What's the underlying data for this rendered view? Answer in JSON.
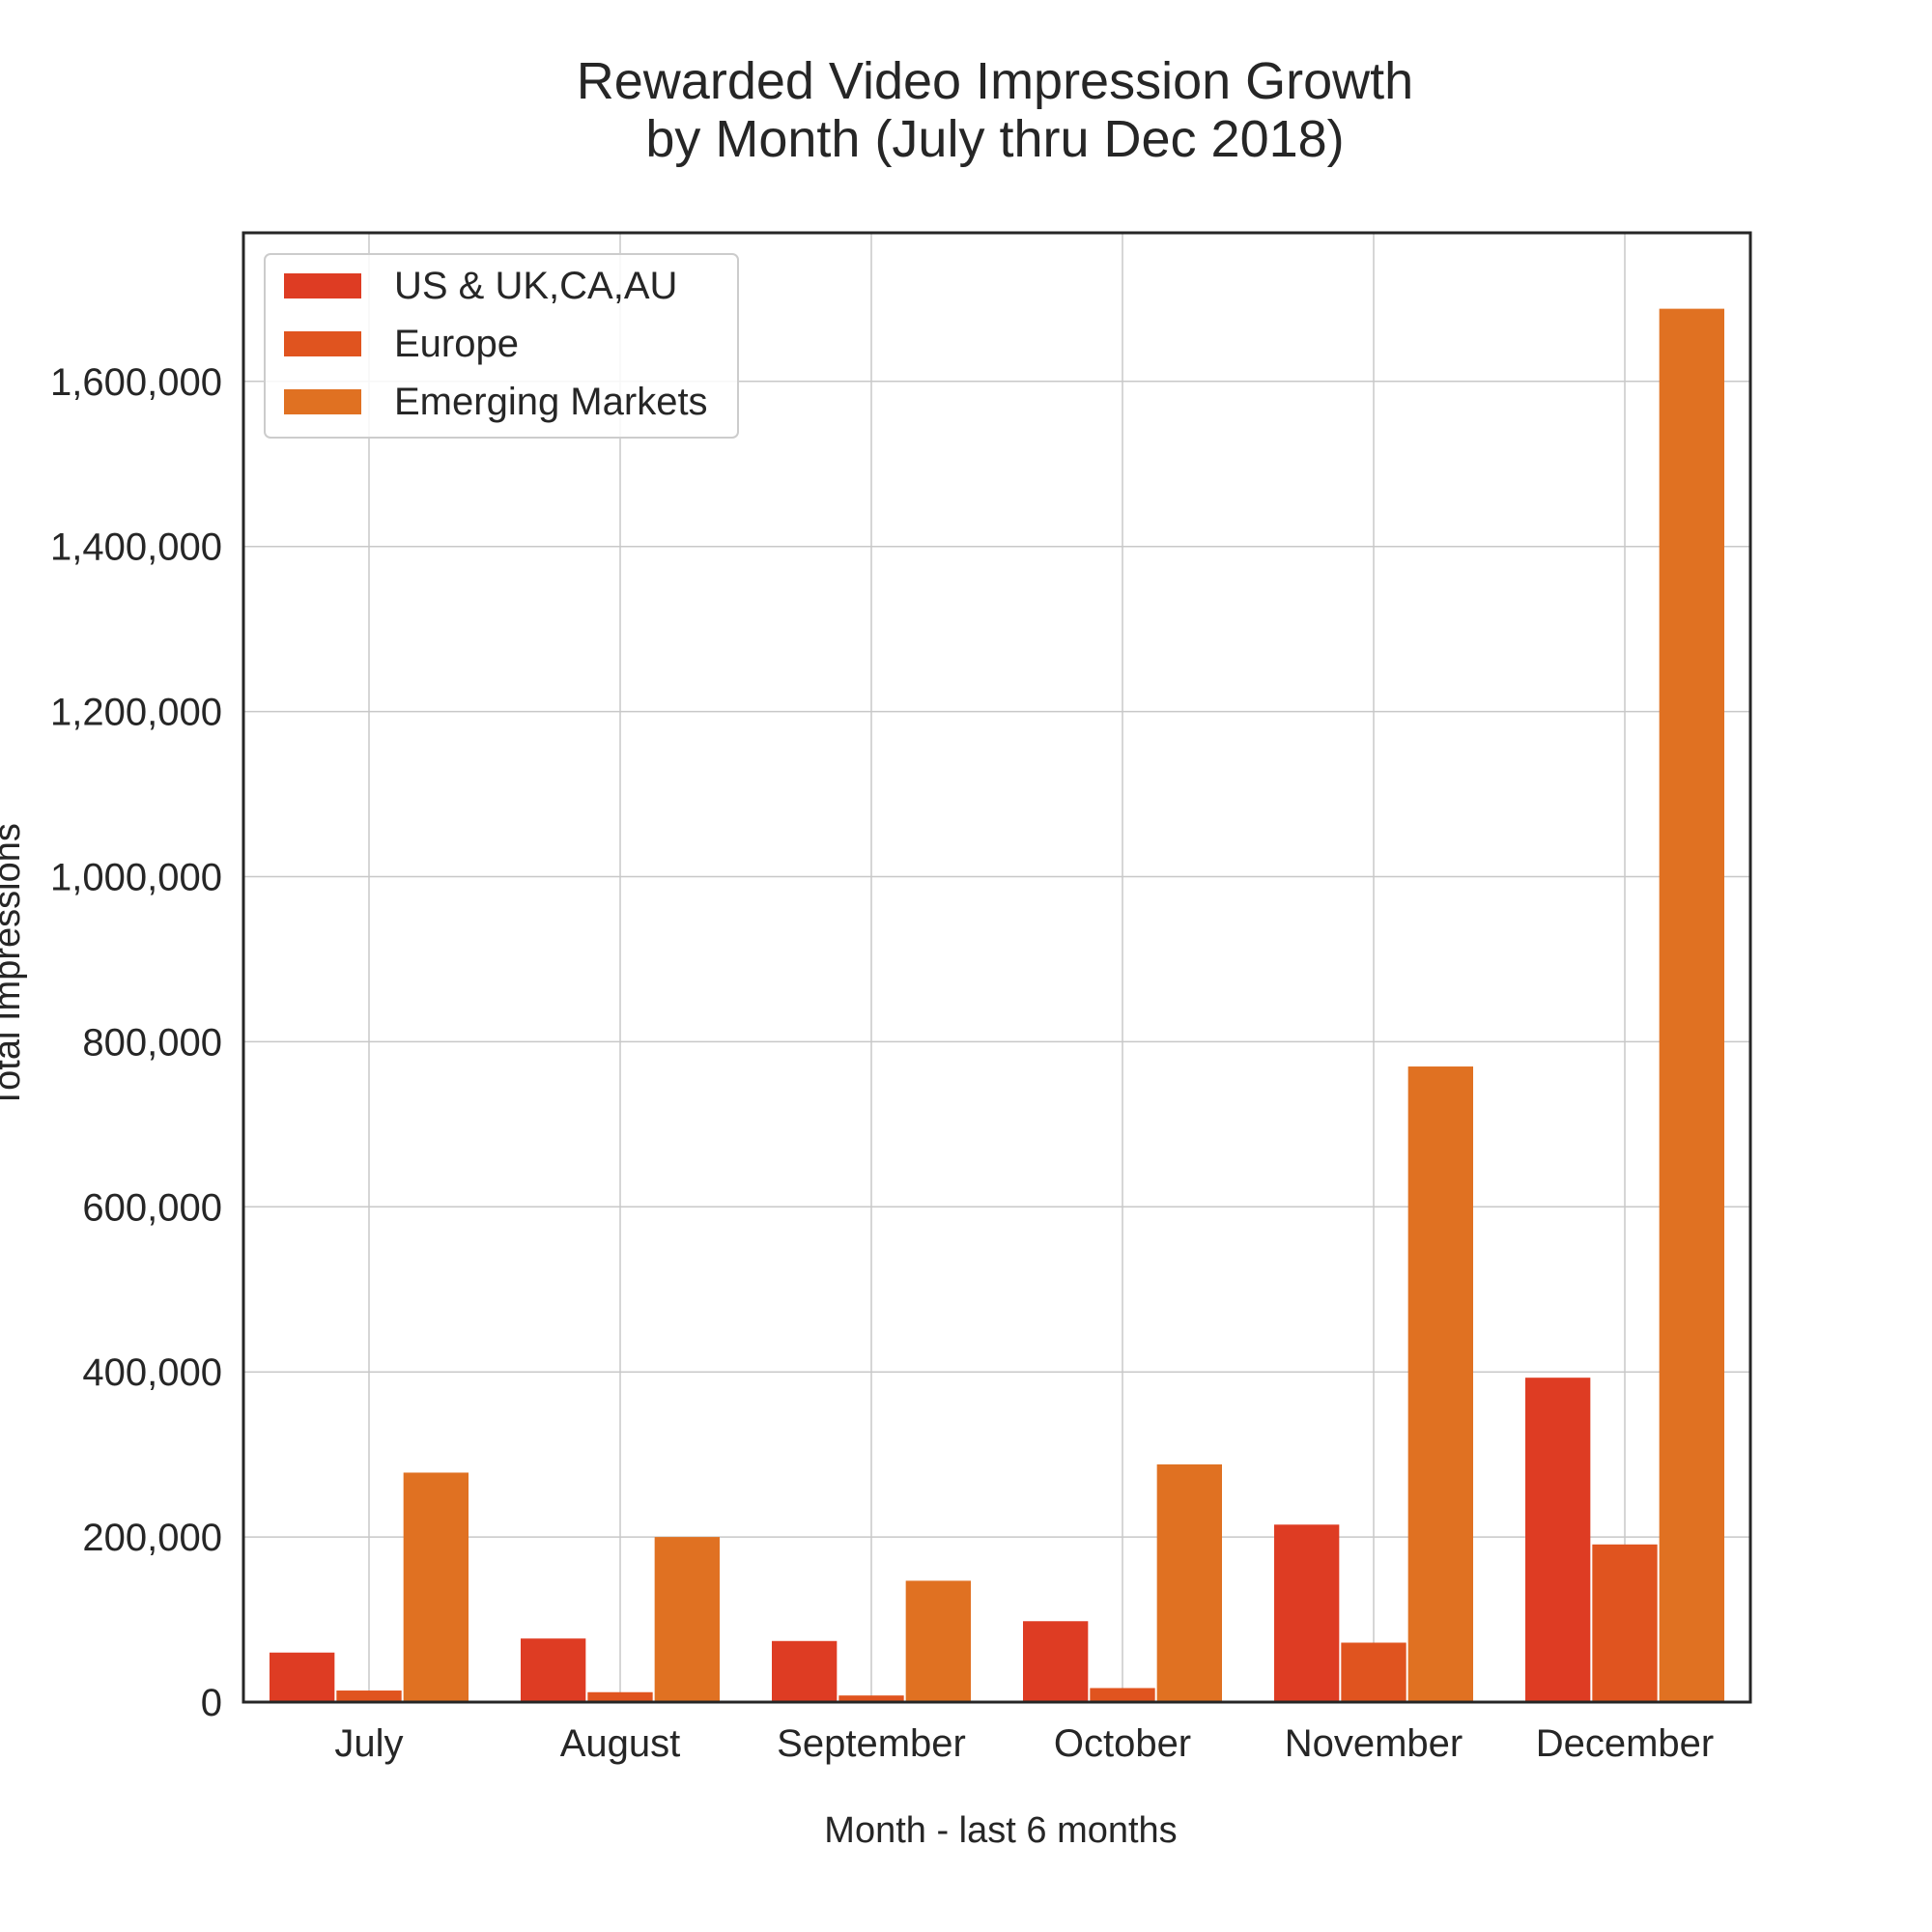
{
  "chart_data": {
    "type": "bar",
    "title_lines": [
      "Rewarded Video Impression Growth",
      "by Month (July thru Dec 2018)"
    ],
    "xlabel": "Month - last 6 months",
    "ylabel": "Total Impressions",
    "categories": [
      "July",
      "August",
      "September",
      "October",
      "November",
      "December"
    ],
    "ylim": [
      0,
      1780000
    ],
    "yticks": [
      0,
      200000,
      400000,
      600000,
      800000,
      1000000,
      1200000,
      1400000,
      1600000
    ],
    "ytick_labels": [
      "0",
      "200,000",
      "400,000",
      "600,000",
      "800,000",
      "1,000,000",
      "1,200,000",
      "1,400,000",
      "1,600,000"
    ],
    "grid": true,
    "legend_position": "top-left",
    "series": [
      {
        "name": "US & UK,CA,AU",
        "color": "#de3c23",
        "values": [
          60000,
          77000,
          74000,
          98000,
          215000,
          393000
        ]
      },
      {
        "name": "Europe",
        "color": "#e0541f",
        "values": [
          14000,
          12000,
          8000,
          17000,
          72000,
          191000
        ]
      },
      {
        "name": "Emerging Markets",
        "color": "#e07122",
        "values": [
          278000,
          200000,
          147000,
          288000,
          770000,
          1688000
        ]
      }
    ]
  }
}
